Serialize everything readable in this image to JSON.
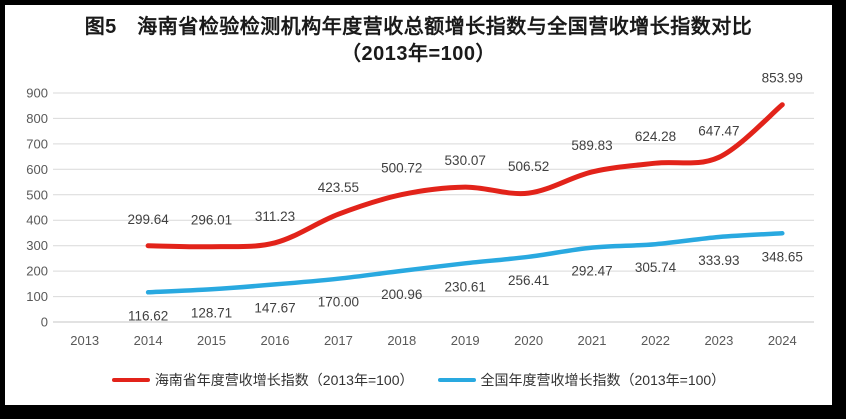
{
  "title": {
    "line1": "图5　海南省检验检测机构年度营收总额增长指数与全国营收增长指数对比",
    "line2": "（2013年=100）"
  },
  "chart_data": {
    "type": "line",
    "title": "图5 海南省检验检测机构年度营收总额增长指数与全国营收增长指数对比（2013年=100）",
    "categories": [
      "2013",
      "2014",
      "2015",
      "2016",
      "2017",
      "2018",
      "2019",
      "2020",
      "2021",
      "2022",
      "2023",
      "2024"
    ],
    "series": [
      {
        "id": "hainan-index",
        "name": "海南省年度营收增长指数（2013年=100）",
        "color": "#e2231a",
        "start_category_index": 1,
        "values": [
          299.64,
          296.01,
          311.23,
          423.55,
          500.72,
          530.07,
          506.52,
          589.83,
          624.28,
          647.47,
          853.99
        ],
        "labels": [
          "299.64",
          "296.01",
          "311.23",
          "423.55",
          "500.72",
          "530.07",
          "506.52",
          "589.83",
          "624.28",
          "647.47",
          "853.99"
        ],
        "label_position": "above",
        "smooth": true
      },
      {
        "id": "national-index",
        "name": "全国年度营收增长指数（2013年=100）",
        "color": "#29a9e0",
        "start_category_index": 1,
        "values": [
          116.62,
          128.71,
          147.67,
          170.0,
          200.96,
          230.61,
          256.41,
          292.47,
          305.74,
          333.93,
          348.65
        ],
        "labels": [
          "116.62",
          "128.71",
          "147.67",
          "170.00",
          "200.96",
          "230.61",
          "256.41",
          "292.47",
          "305.74",
          "333.93",
          "348.65"
        ],
        "label_position": "below",
        "smooth": true
      }
    ],
    "ylim": [
      0,
      900
    ],
    "yticks": [
      0,
      100,
      200,
      300,
      400,
      500,
      600,
      700,
      800,
      900
    ],
    "xlabel": "",
    "ylabel": "",
    "grid": true,
    "legend_position": "bottom",
    "colors": {
      "gridline": "#d9d9d9",
      "axis_line": "#c6c6c6",
      "axis_text": "#595959",
      "data_label": "#404040",
      "background": "#ffffff",
      "border": "#000000"
    }
  }
}
